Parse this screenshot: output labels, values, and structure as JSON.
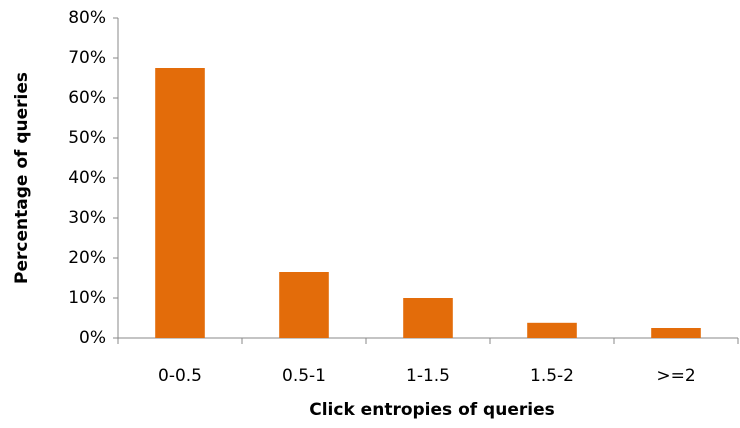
{
  "chart_data": {
    "type": "bar",
    "categories": [
      "0-0.5",
      "0.5-1",
      "1-1.5",
      "1.5-2",
      ">=2"
    ],
    "values": [
      67.5,
      16.5,
      10,
      3.8,
      2.5
    ],
    "color": "#e36c0a",
    "xlabel": "Click entropies of queries",
    "ylabel": "Percentage of queries",
    "ylim": [
      0,
      80
    ],
    "yticks": [
      {
        "value": 0,
        "label": "0%"
      },
      {
        "value": 10,
        "label": "10%"
      },
      {
        "value": 20,
        "label": "20%"
      },
      {
        "value": 30,
        "label": "30%"
      },
      {
        "value": 40,
        "label": "40%"
      },
      {
        "value": 50,
        "label": "50%"
      },
      {
        "value": 60,
        "label": "60%"
      },
      {
        "value": 70,
        "label": "70%"
      },
      {
        "value": 80,
        "label": "80%"
      }
    ],
    "grid": false
  }
}
